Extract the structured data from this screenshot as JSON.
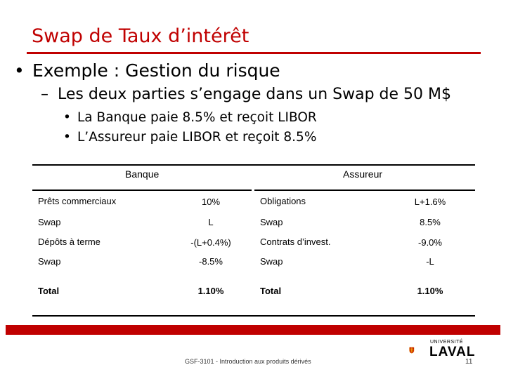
{
  "slide": {
    "title": "Swap de Taux d’intérêt",
    "bullet1": "Exemple : Gestion du risque",
    "bullet2": "Les deux parties s’engage dans un Swap de 50 M$",
    "sub_bullets": [
      "La Banque paie 8.5% et reçoit LIBOR",
      "L’Assureur paie LIBOR et reçoit 8.5%"
    ]
  },
  "table": {
    "headers": {
      "left": "Banque",
      "right": "Assureur"
    },
    "rows": [
      {
        "l_label": "Prêts commerciaux",
        "l_value": "10%",
        "r_label": "Obligations",
        "r_value": "L+1.6%",
        "bold": false
      },
      {
        "l_label": "Swap",
        "l_value": "L",
        "r_label": "Swap",
        "r_value": "8.5%",
        "bold": false
      },
      {
        "l_label": "Dépôts à terme",
        "l_value": "-(L+0.4%)",
        "r_label": "Contrats d’invest.",
        "r_value": "-9.0%",
        "bold": false
      },
      {
        "l_label": "Swap",
        "l_value": "-8.5%",
        "r_label": "Swap",
        "r_value": "-L",
        "bold": false
      },
      {
        "l_label": "Total",
        "l_value": "1.10%",
        "r_label": "Total",
        "r_value": "1.10%",
        "bold": true
      }
    ]
  },
  "footer": {
    "course": "GSF-3101 - Introduction aux produits dérivés",
    "page": "11",
    "logo_top": "UNIVERSITÉ",
    "logo_main": "LAVAL"
  },
  "colors": {
    "accent": "#c00000",
    "logo_gold": "#f2b705"
  }
}
